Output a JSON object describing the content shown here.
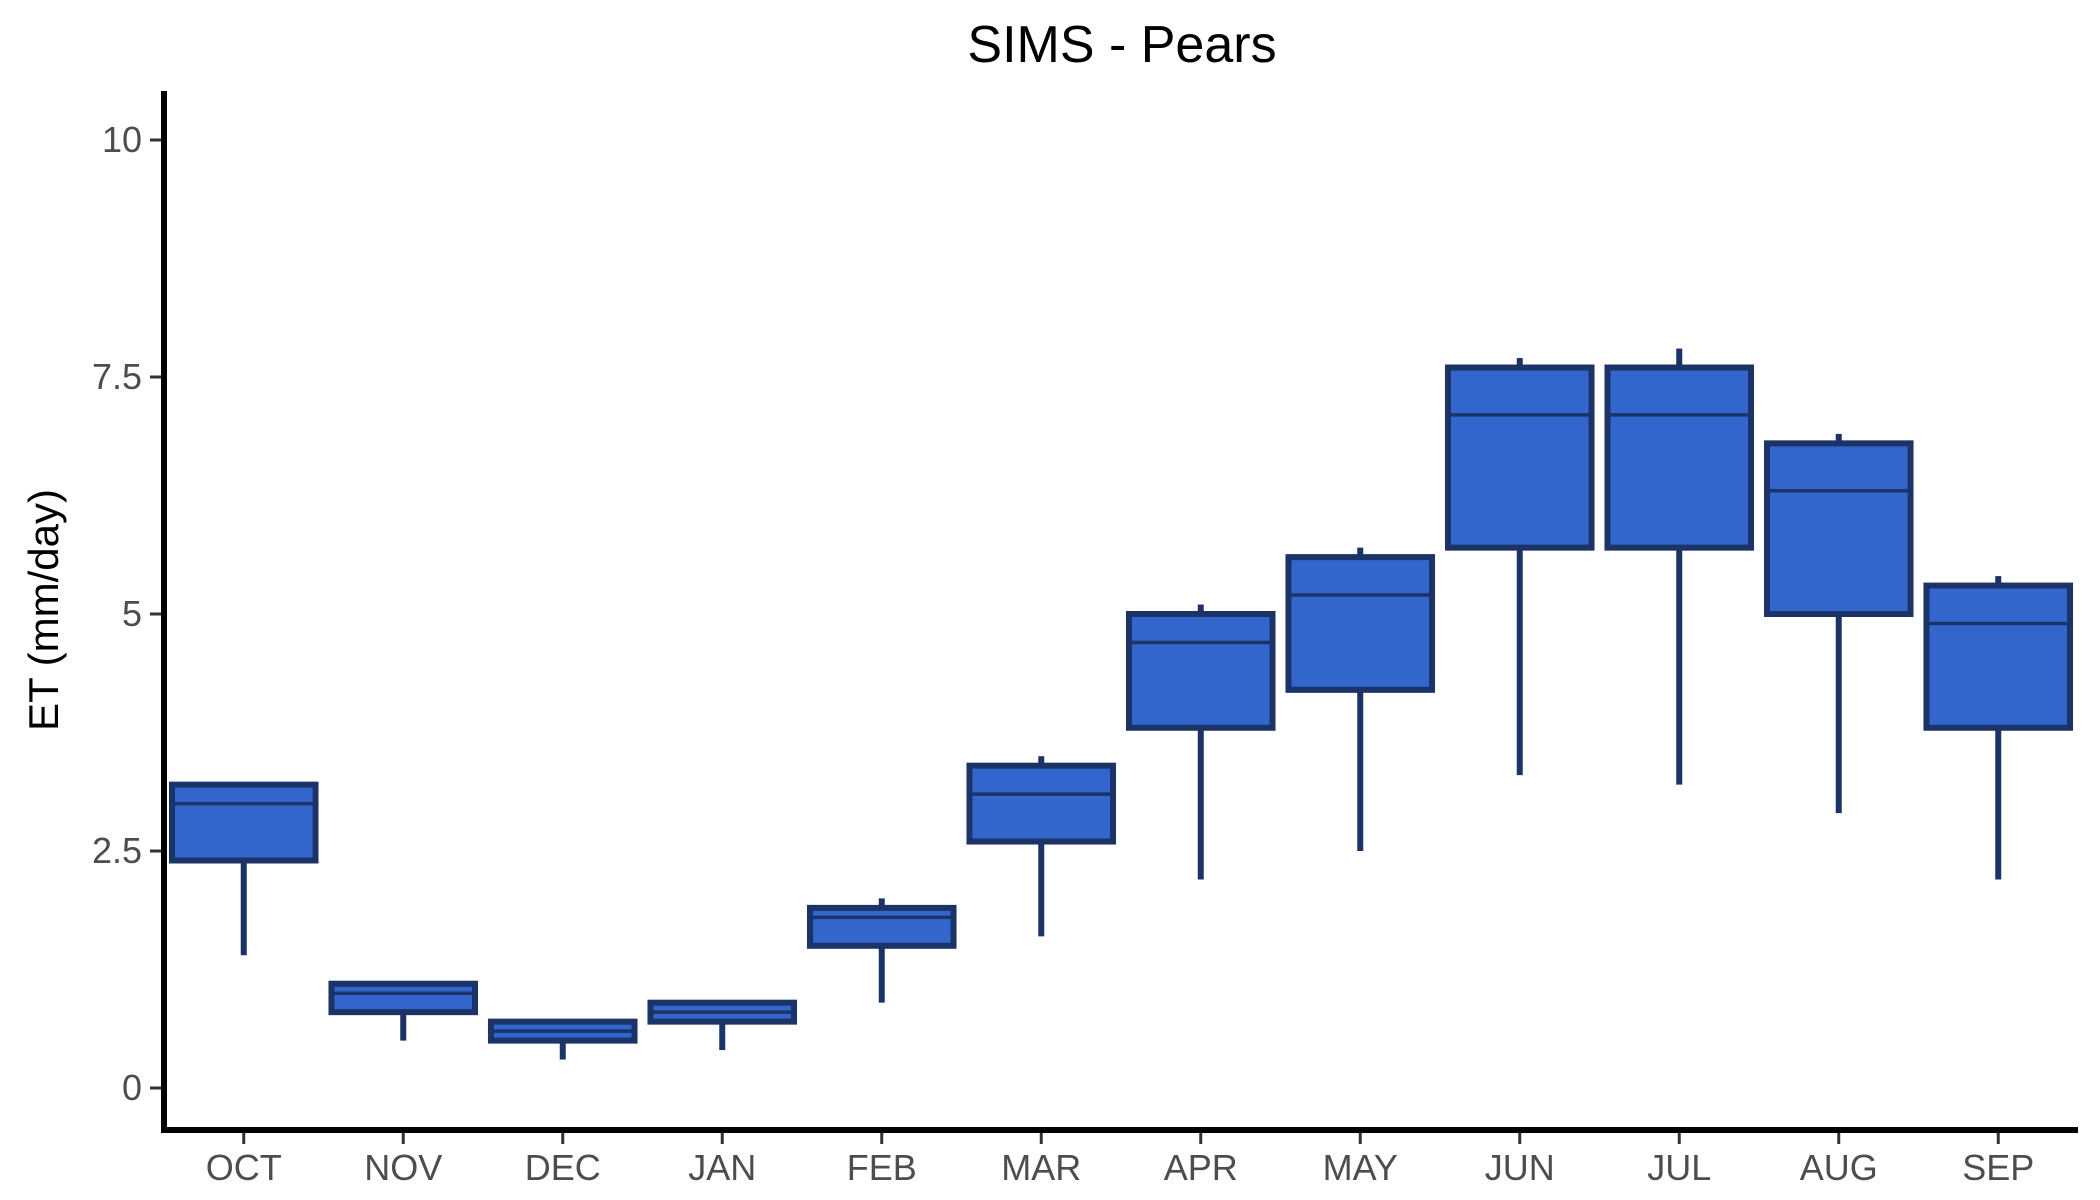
{
  "chart_data": {
    "type": "box",
    "title": "SIMS - Pears",
    "xlabel": "",
    "ylabel": "ET (mm/day)",
    "ylim": [
      -0.5,
      10.5
    ],
    "yticks": [
      0,
      2.5,
      5,
      7.5,
      10
    ],
    "ytick_labels": [
      "0",
      "2.5",
      "5",
      "7.5",
      "10"
    ],
    "grid": false,
    "legend": "none",
    "fill_color": "#3366cc",
    "line_color": "#1b3366",
    "categories": [
      "OCT",
      "NOV",
      "DEC",
      "JAN",
      "FEB",
      "MAR",
      "APR",
      "MAY",
      "JUN",
      "JUL",
      "AUG",
      "SEP"
    ],
    "boxes": [
      {
        "month": "OCT",
        "min": 1.4,
        "q1": 2.4,
        "median": 3.0,
        "q3": 3.2,
        "max": 3.2
      },
      {
        "month": "NOV",
        "min": 0.5,
        "q1": 0.8,
        "median": 1.0,
        "q3": 1.1,
        "max": 1.1
      },
      {
        "month": "DEC",
        "min": 0.3,
        "q1": 0.5,
        "median": 0.6,
        "q3": 0.7,
        "max": 0.7
      },
      {
        "month": "JAN",
        "min": 0.4,
        "q1": 0.7,
        "median": 0.8,
        "q3": 0.9,
        "max": 0.9
      },
      {
        "month": "FEB",
        "min": 0.9,
        "q1": 1.5,
        "median": 1.8,
        "q3": 1.9,
        "max": 2.0
      },
      {
        "month": "MAR",
        "min": 1.6,
        "q1": 2.6,
        "median": 3.1,
        "q3": 3.4,
        "max": 3.5
      },
      {
        "month": "APR",
        "min": 2.2,
        "q1": 3.8,
        "median": 4.7,
        "q3": 5.0,
        "max": 5.1
      },
      {
        "month": "MAY",
        "min": 2.5,
        "q1": 4.2,
        "median": 5.2,
        "q3": 5.6,
        "max": 5.7
      },
      {
        "month": "JUN",
        "min": 3.3,
        "q1": 5.7,
        "median": 7.1,
        "q3": 7.6,
        "max": 7.7
      },
      {
        "month": "JUL",
        "min": 3.2,
        "q1": 5.7,
        "median": 7.1,
        "q3": 7.6,
        "max": 7.8
      },
      {
        "month": "AUG",
        "min": 2.9,
        "q1": 5.0,
        "median": 6.3,
        "q3": 6.8,
        "max": 6.9
      },
      {
        "month": "SEP",
        "min": 2.2,
        "q1": 3.8,
        "median": 4.9,
        "q3": 5.3,
        "max": 5.4
      }
    ]
  }
}
